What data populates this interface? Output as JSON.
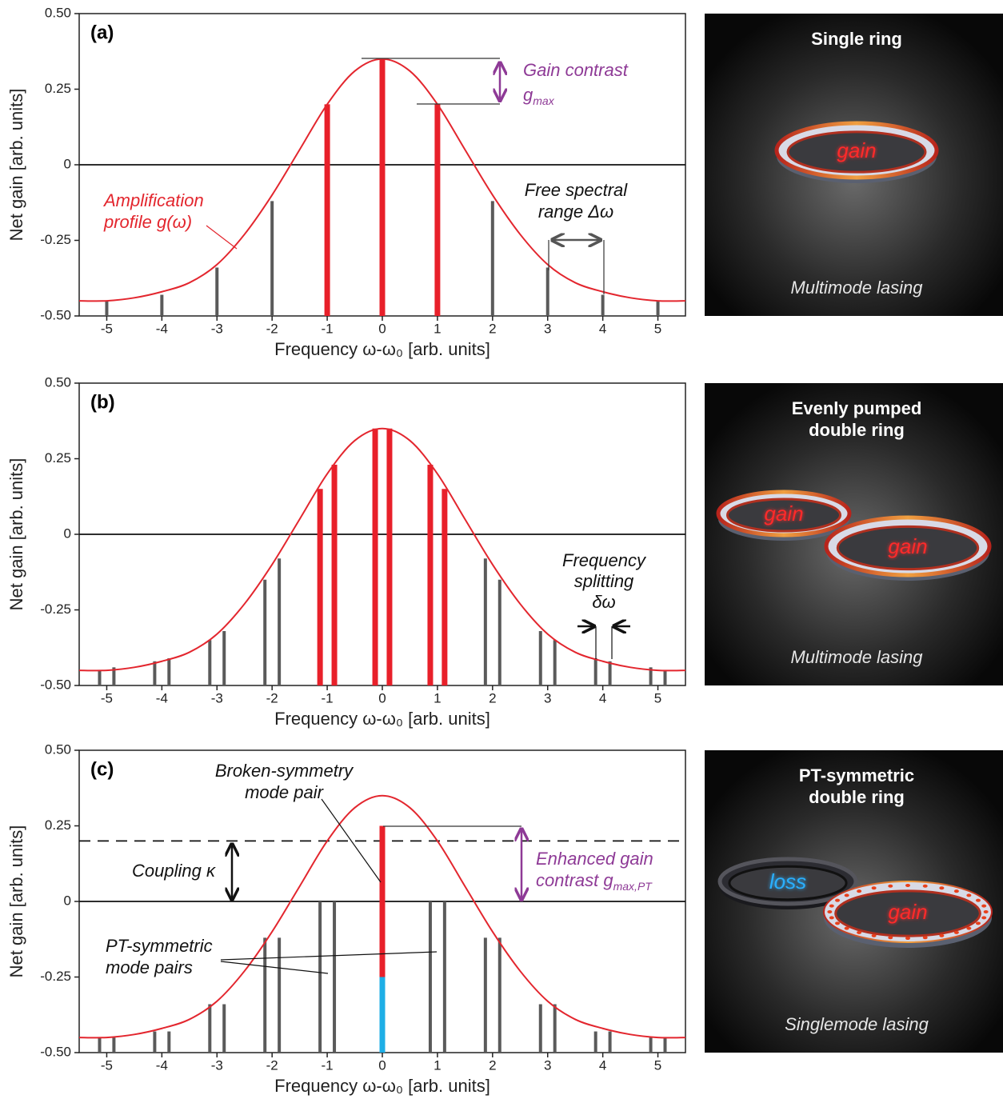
{
  "chart_data": [
    {
      "type": "spectrum",
      "panel_label": "(a)",
      "xlabel": "Frequency ω-ω₀ [arb. units]",
      "ylabel": "Net gain [arb. units]",
      "xlim": [
        -5.5,
        5.5
      ],
      "ylim": [
        -0.5,
        0.5
      ],
      "xticks": [
        -5,
        -4,
        -3,
        -2,
        -1,
        0,
        1,
        2,
        3,
        4,
        5
      ],
      "yticks": [
        {
          "value": 0.5,
          "label": "0.50"
        },
        0.25,
        0,
        -0.25,
        {
          "value": -0.5,
          "label": "-0.50"
        }
      ],
      "hlines": [
        {
          "value": 0,
          "dash": false
        }
      ],
      "curve": {
        "color": "#e3262e",
        "x": [
          -5.5,
          -5,
          -4.5,
          -4,
          -3.5,
          -3,
          -2.5,
          -2,
          -1.5,
          -1,
          -0.5,
          0,
          0.5,
          1,
          1.5,
          2,
          2.5,
          3,
          3.5,
          4,
          4.5,
          5,
          5.5
        ],
        "values": [
          -0.45,
          -0.45,
          -0.44,
          -0.42,
          -0.39,
          -0.33,
          -0.23,
          -0.1,
          0.05,
          0.2,
          0.31,
          0.35,
          0.31,
          0.2,
          0.05,
          -0.1,
          -0.23,
          -0.33,
          -0.39,
          -0.42,
          -0.44,
          -0.45,
          -0.45
        ]
      },
      "modes": {
        "default_color": "#5a5a5a",
        "x": [
          -5,
          -4,
          -3,
          -2,
          -1,
          0,
          1,
          2,
          3,
          4,
          5
        ],
        "values": [
          -0.45,
          -0.43,
          -0.34,
          -0.12,
          0.2,
          0.35,
          0.2,
          -0.12,
          -0.34,
          -0.43,
          -0.45
        ],
        "colors": [
          "#5a5a5a",
          "#5a5a5a",
          "#5a5a5a",
          "#5a5a5a",
          "#e8202a",
          "#e8202a",
          "#e8202a",
          "#5a5a5a",
          "#5a5a5a",
          "#5a5a5a",
          "#5a5a5a"
        ]
      },
      "annotations": [
        {
          "lines": [
            "Amplification",
            "profile g(ω)"
          ],
          "color": "#e3262e"
        },
        {
          "lines": [
            "Gain contrast",
            "g"
          ],
          "sub": "max",
          "color": "#8e3a96"
        },
        {
          "lines": [
            "Free spectral",
            "range Δω"
          ],
          "color": "#111111"
        }
      ]
    },
    {
      "type": "spectrum",
      "panel_label": "(b)",
      "xlabel": "Frequency ω-ω₀ [arb. units]",
      "ylabel": "Net gain [arb. units]",
      "xlim": [
        -5.5,
        5.5
      ],
      "ylim": [
        -0.5,
        0.5
      ],
      "xticks": [
        -5,
        -4,
        -3,
        -2,
        -1,
        0,
        1,
        2,
        3,
        4,
        5
      ],
      "yticks": [
        {
          "value": 0.5,
          "label": "0.50"
        },
        0.25,
        0,
        -0.25,
        {
          "value": -0.5,
          "label": "-0.50"
        }
      ],
      "hlines": [
        {
          "value": 0,
          "dash": false
        }
      ],
      "curve": {
        "color": "#e3262e",
        "x": [
          -5.5,
          -5,
          -4.5,
          -4,
          -3.5,
          -3,
          -2.5,
          -2,
          -1.5,
          -1,
          -0.5,
          0,
          0.5,
          1,
          1.5,
          2,
          2.5,
          3,
          3.5,
          4,
          4.5,
          5,
          5.5
        ],
        "values": [
          -0.45,
          -0.45,
          -0.44,
          -0.42,
          -0.39,
          -0.33,
          -0.23,
          -0.1,
          0.05,
          0.2,
          0.31,
          0.35,
          0.31,
          0.2,
          0.05,
          -0.1,
          -0.23,
          -0.33,
          -0.39,
          -0.42,
          -0.44,
          -0.45,
          -0.45
        ]
      },
      "modes": {
        "default_color": "#5a5a5a",
        "x": [
          -5.13,
          -4.87,
          -4.13,
          -3.87,
          -3.13,
          -2.87,
          -2.13,
          -1.87,
          -1.13,
          -0.87,
          -0.13,
          0.13,
          0.87,
          1.13,
          1.87,
          2.13,
          2.87,
          3.13,
          3.87,
          4.13,
          4.87,
          5.13
        ],
        "values": [
          -0.45,
          -0.44,
          -0.42,
          -0.41,
          -0.35,
          -0.32,
          -0.15,
          -0.08,
          0.15,
          0.23,
          0.35,
          0.35,
          0.23,
          0.15,
          -0.08,
          -0.15,
          -0.32,
          -0.35,
          -0.41,
          -0.42,
          -0.44,
          -0.45
        ],
        "colors": [
          "#5a5a5a",
          "#5a5a5a",
          "#5a5a5a",
          "#5a5a5a",
          "#5a5a5a",
          "#5a5a5a",
          "#5a5a5a",
          "#5a5a5a",
          "#e8202a",
          "#e8202a",
          "#e8202a",
          "#e8202a",
          "#e8202a",
          "#e8202a",
          "#5a5a5a",
          "#5a5a5a",
          "#5a5a5a",
          "#5a5a5a",
          "#5a5a5a",
          "#5a5a5a",
          "#5a5a5a",
          "#5a5a5a"
        ]
      },
      "annotations": [
        {
          "lines": [
            "Frequency",
            "splitting",
            "δω"
          ],
          "color": "#111111"
        }
      ]
    },
    {
      "type": "spectrum",
      "panel_label": "(c)",
      "xlabel": "Frequency ω-ω₀ [arb. units]",
      "ylabel": "Net gain [arb. units]",
      "xlim": [
        -5.5,
        5.5
      ],
      "ylim": [
        -0.5,
        0.5
      ],
      "xticks": [
        -5,
        -4,
        -3,
        -2,
        -1,
        0,
        1,
        2,
        3,
        4,
        5
      ],
      "yticks": [
        {
          "value": 0.5,
          "label": "0.50"
        },
        0.25,
        0,
        -0.25,
        {
          "value": -0.5,
          "label": "-0.50"
        }
      ],
      "hlines": [
        {
          "value": 0,
          "dash": false
        },
        {
          "value": 0.2,
          "dash": true
        }
      ],
      "curve": {
        "color": "#e3262e",
        "x": [
          -5.5,
          -5,
          -4.5,
          -4,
          -3.5,
          -3,
          -2.5,
          -2,
          -1.5,
          -1,
          -0.5,
          0,
          0.5,
          1,
          1.5,
          2,
          2.5,
          3,
          3.5,
          4,
          4.5,
          5,
          5.5
        ],
        "values": [
          -0.45,
          -0.45,
          -0.44,
          -0.42,
          -0.39,
          -0.33,
          -0.23,
          -0.1,
          0.05,
          0.2,
          0.31,
          0.35,
          0.31,
          0.2,
          0.05,
          -0.1,
          -0.23,
          -0.33,
          -0.39,
          -0.42,
          -0.44,
          -0.45,
          -0.45
        ]
      },
      "modes": {
        "default_color": "#5a5a5a",
        "x": [
          -5.13,
          -4.87,
          -4.13,
          -3.87,
          -3.13,
          -2.87,
          -2.13,
          -1.87,
          -1.13,
          -0.87,
          0,
          0,
          0.87,
          1.13,
          1.87,
          2.13,
          2.87,
          3.13,
          3.87,
          4.13,
          4.87,
          5.13
        ],
        "values": [
          -0.45,
          -0.45,
          -0.43,
          -0.43,
          -0.34,
          -0.34,
          -0.12,
          -0.12,
          0,
          0,
          0.25,
          -0.25,
          0,
          0,
          -0.12,
          -0.12,
          -0.34,
          -0.34,
          -0.43,
          -0.43,
          -0.45,
          -0.45
        ],
        "colors": [
          "#5a5a5a",
          "#5a5a5a",
          "#5a5a5a",
          "#5a5a5a",
          "#5a5a5a",
          "#5a5a5a",
          "#5a5a5a",
          "#5a5a5a",
          "#5a5a5a",
          "#5a5a5a",
          "#e8202a",
          "#1eaee6",
          "#5a5a5a",
          "#5a5a5a",
          "#5a5a5a",
          "#5a5a5a",
          "#5a5a5a",
          "#5a5a5a",
          "#5a5a5a",
          "#5a5a5a",
          "#5a5a5a",
          "#5a5a5a"
        ]
      },
      "annotations": [
        {
          "lines": [
            "Broken-symmetry",
            "mode pair"
          ],
          "color": "#111111"
        },
        {
          "lines": [
            "Coupling κ"
          ],
          "color": "#111111"
        },
        {
          "lines": [
            "Enhanced gain",
            "contrast g"
          ],
          "sub": "max,PT",
          "color": "#8e3a96"
        },
        {
          "lines": [
            "PT-symmetric",
            "mode pairs"
          ],
          "color": "#111111"
        }
      ]
    }
  ],
  "images": [
    {
      "title": [
        "Single ring"
      ],
      "labels": [
        "gain"
      ],
      "caption": "Multimode lasing"
    },
    {
      "title": [
        "Evenly pumped",
        "double ring"
      ],
      "labels": [
        "gain",
        "gain"
      ],
      "caption": "Multimode lasing"
    },
    {
      "title": [
        "PT-symmetric",
        "double ring"
      ],
      "labels": [
        "loss",
        "gain"
      ],
      "caption": "Singlemode lasing"
    }
  ]
}
